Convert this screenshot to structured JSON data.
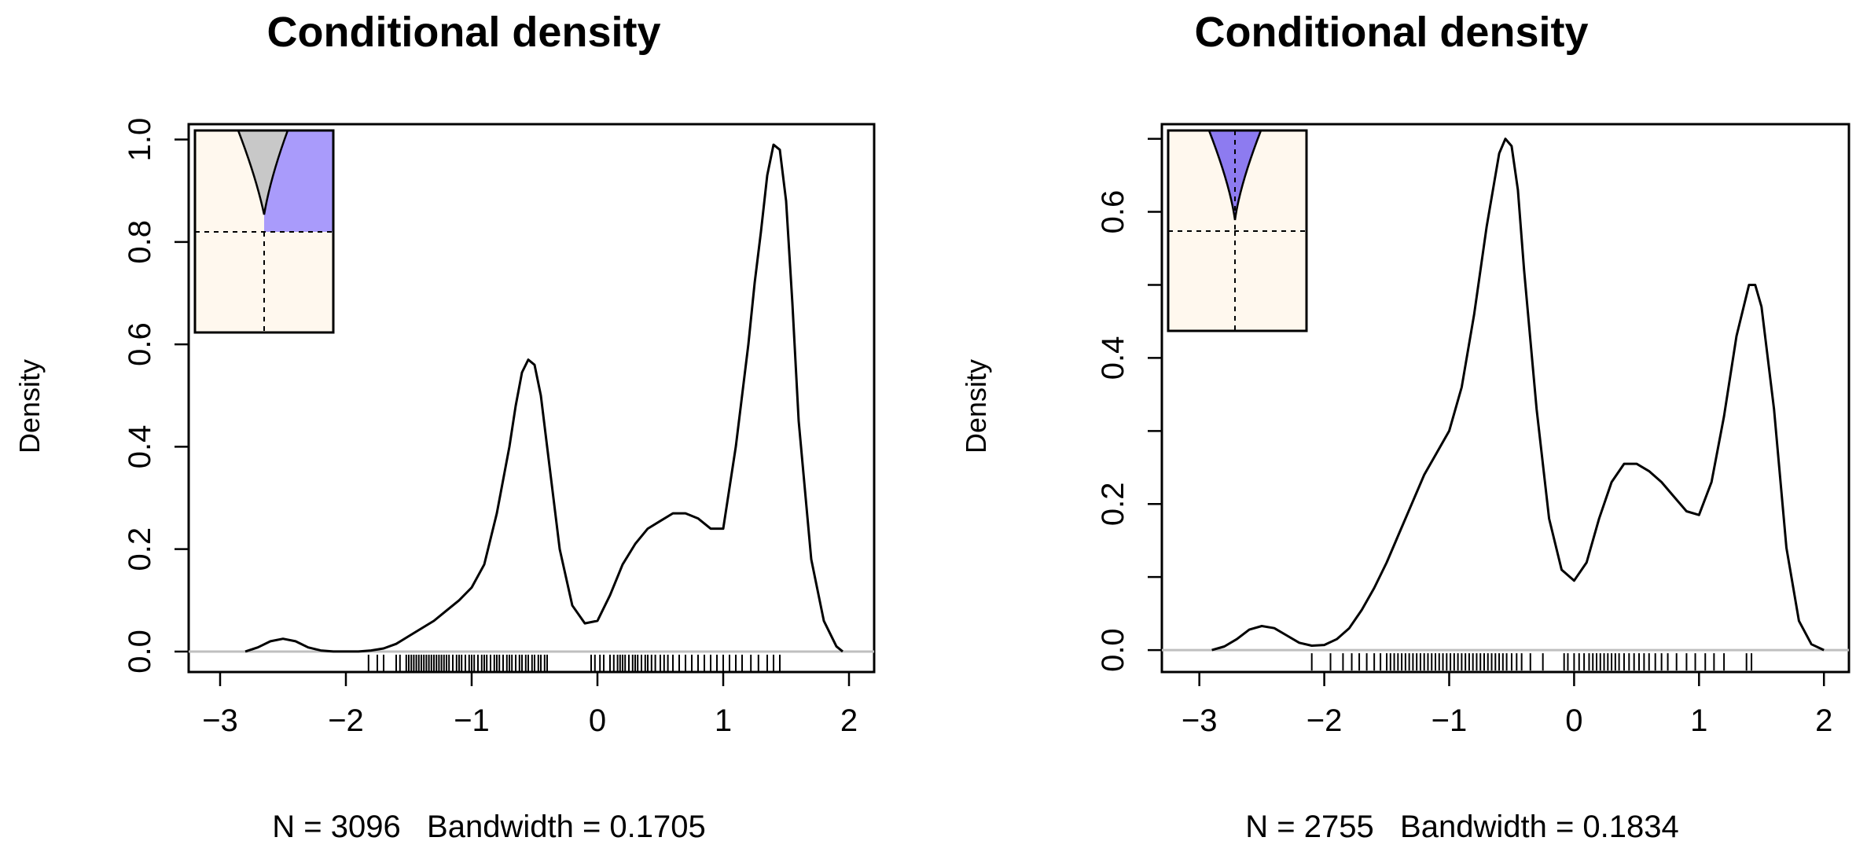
{
  "chart_data": [
    {
      "type": "line",
      "title": "Conditional density",
      "ylabel": "Density",
      "xlabel": "N = 3096   Bandwidth = 0.1705",
      "n": "3096",
      "bandwidth": "0.1705",
      "xlim": [
        -3.25,
        2.2
      ],
      "ylim": [
        -0.04,
        1.03
      ],
      "xticks": [
        -3,
        -2,
        -1,
        0,
        1,
        2
      ],
      "xtick_labels": [
        "−3",
        "−2",
        "−1",
        "0",
        "1",
        "2"
      ],
      "yticks": [
        0.0,
        0.2,
        0.4,
        0.6,
        0.8,
        1.0
      ],
      "ytick_labels": [
        "0.0",
        "0.2",
        "0.4",
        "0.6",
        "0.8",
        "1.0"
      ],
      "series": [
        {
          "name": "density",
          "color": "#000000",
          "x": [
            -2.8,
            -2.7,
            -2.6,
            -2.5,
            -2.4,
            -2.3,
            -2.2,
            -2.1,
            -2.0,
            -1.9,
            -1.8,
            -1.7,
            -1.6,
            -1.5,
            -1.4,
            -1.3,
            -1.2,
            -1.1,
            -1.0,
            -0.9,
            -0.8,
            -0.7,
            -0.65,
            -0.6,
            -0.55,
            -0.5,
            -0.45,
            -0.4,
            -0.35,
            -0.3,
            -0.2,
            -0.1,
            0.0,
            0.1,
            0.2,
            0.3,
            0.4,
            0.5,
            0.6,
            0.7,
            0.8,
            0.9,
            1.0,
            1.1,
            1.2,
            1.25,
            1.3,
            1.35,
            1.4,
            1.45,
            1.5,
            1.55,
            1.6,
            1.7,
            1.8,
            1.9,
            1.95
          ],
          "y": [
            0.0,
            0.008,
            0.02,
            0.025,
            0.02,
            0.008,
            0.002,
            0.0,
            0.0,
            0.0,
            0.002,
            0.006,
            0.015,
            0.03,
            0.045,
            0.06,
            0.08,
            0.1,
            0.125,
            0.17,
            0.27,
            0.4,
            0.48,
            0.545,
            0.57,
            0.56,
            0.5,
            0.4,
            0.3,
            0.2,
            0.09,
            0.055,
            0.06,
            0.11,
            0.17,
            0.21,
            0.24,
            0.255,
            0.27,
            0.27,
            0.26,
            0.24,
            0.24,
            0.4,
            0.6,
            0.72,
            0.82,
            0.93,
            0.99,
            0.98,
            0.88,
            0.68,
            0.45,
            0.18,
            0.06,
            0.01,
            0.0
          ]
        }
      ],
      "rug_x": [
        -1.82,
        -1.75,
        -1.7,
        -1.6,
        -1.57,
        -1.52,
        -1.5,
        -1.48,
        -1.46,
        -1.44,
        -1.42,
        -1.4,
        -1.38,
        -1.36,
        -1.34,
        -1.32,
        -1.3,
        -1.28,
        -1.26,
        -1.24,
        -1.22,
        -1.2,
        -1.18,
        -1.15,
        -1.12,
        -1.1,
        -1.08,
        -1.05,
        -1.02,
        -1.0,
        -0.98,
        -0.95,
        -0.92,
        -0.9,
        -0.88,
        -0.85,
        -0.82,
        -0.8,
        -0.78,
        -0.75,
        -0.72,
        -0.7,
        -0.68,
        -0.65,
        -0.62,
        -0.6,
        -0.57,
        -0.55,
        -0.52,
        -0.5,
        -0.47,
        -0.45,
        -0.42,
        -0.4,
        -0.05,
        -0.02,
        0.02,
        0.05,
        0.1,
        0.13,
        0.16,
        0.18,
        0.2,
        0.22,
        0.25,
        0.28,
        0.3,
        0.32,
        0.35,
        0.38,
        0.4,
        0.43,
        0.46,
        0.5,
        0.53,
        0.56,
        0.6,
        0.65,
        0.7,
        0.75,
        0.8,
        0.85,
        0.9,
        0.95,
        1.0,
        1.05,
        1.1,
        1.15,
        1.22,
        1.28,
        1.35,
        1.4,
        1.45
      ],
      "inset": {
        "shade_color": "#a99bfb",
        "gray_color": "#c8c8c8",
        "bg_color": "#fff8ee"
      }
    },
    {
      "type": "line",
      "title": "Conditional density",
      "ylabel": "Density",
      "xlabel": "N = 2755   Bandwidth = 0.1834",
      "n": "2755",
      "bandwidth": "0.1834",
      "xlim": [
        -3.3,
        2.2
      ],
      "ylim": [
        -0.03,
        0.72
      ],
      "xticks": [
        -3,
        -2,
        -1,
        0,
        1,
        2
      ],
      "xtick_labels": [
        "−3",
        "−2",
        "−1",
        "0",
        "1",
        "2"
      ],
      "yticks": [
        0.0,
        0.1,
        0.2,
        0.3,
        0.4,
        0.5,
        0.6,
        0.7
      ],
      "ytick_labels": [
        "0.0",
        "",
        "0.2",
        "",
        "0.4",
        "",
        "0.6",
        ""
      ],
      "series": [
        {
          "name": "density",
          "color": "#000000",
          "x": [
            -2.9,
            -2.8,
            -2.7,
            -2.6,
            -2.5,
            -2.4,
            -2.3,
            -2.2,
            -2.1,
            -2.0,
            -1.9,
            -1.8,
            -1.7,
            -1.6,
            -1.5,
            -1.4,
            -1.3,
            -1.2,
            -1.1,
            -1.0,
            -0.9,
            -0.8,
            -0.7,
            -0.6,
            -0.55,
            -0.5,
            -0.45,
            -0.4,
            -0.3,
            -0.2,
            -0.1,
            0.0,
            0.1,
            0.2,
            0.3,
            0.4,
            0.5,
            0.6,
            0.7,
            0.8,
            0.9,
            1.0,
            1.1,
            1.2,
            1.3,
            1.4,
            1.45,
            1.5,
            1.6,
            1.7,
            1.8,
            1.9,
            2.0
          ],
          "y": [
            0.0,
            0.005,
            0.015,
            0.028,
            0.033,
            0.03,
            0.02,
            0.01,
            0.006,
            0.007,
            0.015,
            0.03,
            0.055,
            0.085,
            0.12,
            0.16,
            0.2,
            0.24,
            0.27,
            0.3,
            0.36,
            0.46,
            0.58,
            0.68,
            0.7,
            0.69,
            0.63,
            0.52,
            0.33,
            0.18,
            0.11,
            0.095,
            0.12,
            0.18,
            0.23,
            0.255,
            0.255,
            0.245,
            0.23,
            0.21,
            0.19,
            0.185,
            0.23,
            0.32,
            0.43,
            0.5,
            0.5,
            0.47,
            0.33,
            0.14,
            0.04,
            0.008,
            0.0
          ]
        }
      ],
      "rug_x": [
        -2.1,
        -1.95,
        -1.85,
        -1.78,
        -1.72,
        -1.66,
        -1.6,
        -1.55,
        -1.5,
        -1.47,
        -1.44,
        -1.41,
        -1.38,
        -1.35,
        -1.32,
        -1.29,
        -1.26,
        -1.23,
        -1.2,
        -1.17,
        -1.14,
        -1.11,
        -1.08,
        -1.05,
        -1.02,
        -0.99,
        -0.96,
        -0.93,
        -0.9,
        -0.87,
        -0.84,
        -0.81,
        -0.78,
        -0.75,
        -0.72,
        -0.69,
        -0.66,
        -0.63,
        -0.6,
        -0.57,
        -0.54,
        -0.5,
        -0.46,
        -0.42,
        -0.35,
        -0.25,
        -0.08,
        -0.05,
        0.0,
        0.04,
        0.08,
        0.12,
        0.15,
        0.18,
        0.21,
        0.24,
        0.27,
        0.3,
        0.33,
        0.36,
        0.4,
        0.44,
        0.48,
        0.52,
        0.56,
        0.6,
        0.65,
        0.7,
        0.75,
        0.82,
        0.9,
        0.97,
        1.05,
        1.12,
        1.2,
        1.38,
        1.42
      ],
      "inset": {
        "shade_color": "#8d7bf0",
        "gray_color": "#c8c8c8",
        "bg_color": "#fff8ee"
      }
    }
  ]
}
